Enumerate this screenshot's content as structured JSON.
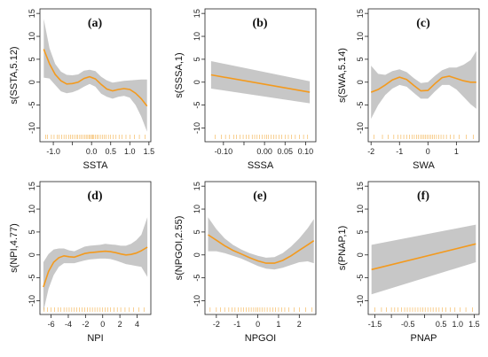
{
  "chart_data": [
    {
      "type": "line",
      "tag": "(a)",
      "xlabel": "SSTA",
      "ylabel": "s(SSTA,5.12)",
      "xlim": [
        -1.35,
        1.55
      ],
      "ylim": [
        -13,
        16
      ],
      "xticks": [
        -1.0,
        -0.5,
        0.0,
        0.5,
        1.0,
        1.5
      ],
      "xtick_labels": [
        "-1.0",
        "",
        "0.0",
        "0.5",
        "1.0",
        "1.5"
      ],
      "yticks": [
        -10,
        -5,
        0,
        5,
        10,
        15
      ],
      "x": [
        -1.25,
        -1.1,
        -0.95,
        -0.8,
        -0.65,
        -0.5,
        -0.35,
        -0.2,
        -0.05,
        0.1,
        0.25,
        0.4,
        0.55,
        0.7,
        0.85,
        1.0,
        1.15,
        1.3,
        1.45
      ],
      "y": [
        7.2,
        4.0,
        1.7,
        0.3,
        -0.4,
        -0.3,
        0.0,
        0.8,
        1.2,
        0.7,
        -0.5,
        -1.5,
        -1.9,
        -1.6,
        -1.4,
        -1.6,
        -2.4,
        -3.6,
        -5.2
      ],
      "lower": [
        1.0,
        0.8,
        -0.6,
        -2.0,
        -2.4,
        -2.2,
        -1.7,
        -1.0,
        -0.4,
        -1.0,
        -2.5,
        -3.2,
        -3.6,
        -3.2,
        -3.0,
        -3.4,
        -5.0,
        -7.5,
        -10.8
      ],
      "upper": [
        13.8,
        7.4,
        4.0,
        2.3,
        1.6,
        1.5,
        1.7,
        2.5,
        2.7,
        2.4,
        1.2,
        0.4,
        -0.1,
        0.1,
        0.3,
        0.4,
        0.5,
        0.6,
        0.6
      ],
      "rug": [
        -1.2,
        -1.15,
        -1.05,
        -0.98,
        -0.9,
        -0.85,
        -0.78,
        -0.72,
        -0.66,
        -0.6,
        -0.55,
        -0.5,
        -0.45,
        -0.4,
        -0.36,
        -0.31,
        -0.27,
        -0.22,
        -0.18,
        -0.14,
        -0.1,
        -0.06,
        -0.03,
        0.0,
        0.03,
        0.06,
        0.1,
        0.14,
        0.18,
        0.23,
        0.28,
        0.33,
        0.38,
        0.44,
        0.5,
        0.57,
        0.64,
        0.72,
        0.8,
        0.9,
        1.0,
        1.12,
        1.25,
        1.4
      ]
    },
    {
      "type": "line",
      "tag": "(b)",
      "xlabel": "SSSA",
      "ylabel": "s(SSSA,1)",
      "xlim": [
        -0.145,
        0.125
      ],
      "ylim": [
        -13,
        16
      ],
      "xticks": [
        -0.1,
        -0.05,
        0.0,
        0.05,
        0.1
      ],
      "xtick_labels": [
        "-0.10",
        "",
        "0.00",
        "0.05",
        "0.10"
      ],
      "yticks": [
        -10,
        -5,
        0,
        5,
        10,
        15
      ],
      "x": [
        -0.13,
        0.11
      ],
      "y": [
        1.6,
        -2.2
      ],
      "lower": [
        -1.4,
        -4.6
      ],
      "upper": [
        4.6,
        0.2
      ],
      "rug": [
        -0.12,
        -0.105,
        -0.095,
        -0.085,
        -0.075,
        -0.068,
        -0.06,
        -0.052,
        -0.045,
        -0.038,
        -0.03,
        -0.024,
        -0.018,
        -0.012,
        -0.006,
        0.0,
        0.005,
        0.01,
        0.016,
        0.022,
        0.028,
        0.035,
        0.042,
        0.05,
        0.058,
        0.066,
        0.075,
        0.085,
        0.095,
        0.105
      ]
    },
    {
      "type": "line",
      "tag": "(c)",
      "xlabel": "SWA",
      "ylabel": "s(SWA,5.14)",
      "xlim": [
        -2.1,
        1.8
      ],
      "ylim": [
        -13,
        16
      ],
      "xticks": [
        -2,
        -1,
        0,
        1
      ],
      "xtick_labels": [
        "-2",
        "-1",
        "0",
        "1"
      ],
      "yticks": [
        -10,
        -5,
        0,
        5,
        10,
        15
      ],
      "x": [
        -2.0,
        -1.75,
        -1.5,
        -1.25,
        -1.0,
        -0.75,
        -0.5,
        -0.25,
        0.0,
        0.25,
        0.5,
        0.75,
        1.0,
        1.25,
        1.5,
        1.7
      ],
      "y": [
        -2.2,
        -1.6,
        -0.6,
        0.5,
        1.1,
        0.6,
        -0.7,
        -1.9,
        -1.8,
        -0.3,
        1.0,
        1.3,
        0.8,
        0.3,
        0.0,
        0.0
      ],
      "lower": [
        -8.0,
        -5.0,
        -2.8,
        -1.4,
        -0.6,
        -1.0,
        -2.3,
        -3.6,
        -3.6,
        -2.0,
        -0.6,
        -0.6,
        -1.6,
        -3.2,
        -4.8,
        -5.8
      ],
      "upper": [
        3.6,
        1.8,
        1.6,
        2.4,
        2.8,
        2.2,
        0.9,
        -0.2,
        0.0,
        1.4,
        2.6,
        3.2,
        3.2,
        3.8,
        4.8,
        6.8
      ],
      "rug": [
        -1.9,
        -1.6,
        -1.4,
        -1.2,
        -1.05,
        -0.95,
        -0.85,
        -0.75,
        -0.65,
        -0.55,
        -0.48,
        -0.4,
        -0.33,
        -0.26,
        -0.2,
        -0.14,
        -0.08,
        -0.02,
        0.04,
        0.1,
        0.16,
        0.22,
        0.3,
        0.38,
        0.46,
        0.55,
        0.65,
        0.78,
        0.92,
        1.1,
        1.35,
        1.6
      ]
    },
    {
      "type": "line",
      "tag": "(d)",
      "xlabel": "NPI",
      "ylabel": "s(NPI,4.77)",
      "xlim": [
        -7.3,
        5.6
      ],
      "ylim": [
        -13,
        16
      ],
      "xticks": [
        -6,
        -4,
        -2,
        0,
        2,
        4
      ],
      "xtick_labels": [
        "-6",
        "-4",
        "-2",
        "0",
        "2",
        "4"
      ],
      "yticks": [
        -10,
        -5,
        0,
        5,
        10,
        15
      ],
      "x": [
        -6.9,
        -6.3,
        -5.7,
        -5.1,
        -4.5,
        -3.9,
        -3.3,
        -2.7,
        -2.1,
        -1.5,
        -0.9,
        -0.3,
        0.3,
        0.9,
        1.5,
        2.1,
        2.7,
        3.3,
        3.9,
        4.5,
        5.2
      ],
      "y": [
        -7.0,
        -3.6,
        -1.6,
        -0.6,
        -0.2,
        -0.4,
        -0.5,
        -0.1,
        0.3,
        0.5,
        0.6,
        0.7,
        0.8,
        0.7,
        0.5,
        0.2,
        0.0,
        0.1,
        0.4,
        0.9,
        1.7
      ],
      "lower": [
        -12.4,
        -7.4,
        -4.4,
        -2.6,
        -1.8,
        -1.8,
        -1.8,
        -1.5,
        -1.2,
        -1.0,
        -0.9,
        -0.8,
        -0.8,
        -0.9,
        -1.2,
        -1.6,
        -2.0,
        -2.2,
        -2.4,
        -2.6,
        -4.8
      ],
      "upper": [
        -1.6,
        0.2,
        1.2,
        1.4,
        1.4,
        1.0,
        0.8,
        1.3,
        1.8,
        2.0,
        2.1,
        2.2,
        2.4,
        2.3,
        2.2,
        2.0,
        2.0,
        2.4,
        3.2,
        4.4,
        8.2
      ],
      "rug": [
        -6.8,
        -6.4,
        -6.0,
        -5.6,
        -5.2,
        -4.9,
        -4.5,
        -4.2,
        -3.9,
        -3.6,
        -3.3,
        -3.0,
        -2.7,
        -2.4,
        -2.1,
        -1.8,
        -1.5,
        -1.2,
        -0.9,
        -0.6,
        -0.3,
        0.0,
        0.3,
        0.6,
        0.9,
        1.3,
        1.7,
        2.1,
        2.6,
        3.1,
        3.6,
        4.2,
        4.8
      ]
    },
    {
      "type": "line",
      "tag": "(e)",
      "xlabel": "NPGOI",
      "ylabel": "s(NPGOI,2.55)",
      "xlim": [
        -2.55,
        2.8
      ],
      "ylim": [
        -13,
        16
      ],
      "xticks": [
        -2,
        -1,
        0,
        1,
        2
      ],
      "xtick_labels": [
        "-2",
        "-1",
        "0",
        "1",
        "2"
      ],
      "yticks": [
        -10,
        -5,
        0,
        5,
        10,
        15
      ],
      "x": [
        -2.4,
        -2.0,
        -1.6,
        -1.2,
        -0.8,
        -0.4,
        0.0,
        0.4,
        0.8,
        1.2,
        1.6,
        2.0,
        2.4,
        2.7
      ],
      "y": [
        4.4,
        3.2,
        2.0,
        1.0,
        0.2,
        -0.6,
        -1.3,
        -1.8,
        -1.8,
        -1.2,
        -0.2,
        1.0,
        2.2,
        3.1
      ],
      "lower": [
        0.8,
        0.8,
        0.4,
        -0.2,
        -0.8,
        -1.6,
        -2.4,
        -3.0,
        -3.2,
        -2.8,
        -2.2,
        -1.6,
        -1.4,
        -1.8
      ],
      "upper": [
        8.2,
        5.6,
        3.6,
        2.2,
        1.2,
        0.4,
        -0.2,
        -0.6,
        -0.5,
        0.4,
        1.8,
        3.6,
        5.8,
        7.8
      ],
      "rug": [
        -2.3,
        -2.0,
        -1.8,
        -1.6,
        -1.4,
        -1.25,
        -1.1,
        -0.95,
        -0.8,
        -0.68,
        -0.56,
        -0.44,
        -0.32,
        -0.2,
        -0.1,
        0.0,
        0.1,
        0.2,
        0.32,
        0.45,
        0.58,
        0.72,
        0.86,
        1.0,
        1.15,
        1.3,
        1.5,
        1.75,
        2.0,
        2.3,
        2.6
      ]
    },
    {
      "type": "line",
      "tag": "(f)",
      "xlabel": "PNAP",
      "ylabel": "s(PNAP,1)",
      "xlim": [
        -1.7,
        1.65
      ],
      "ylim": [
        -13,
        16
      ],
      "xticks": [
        -1.5,
        -1.0,
        -0.5,
        0.0,
        0.5,
        1.0,
        1.5
      ],
      "xtick_labels": [
        "-1.5",
        "",
        "-0.5",
        "",
        "0.5",
        "1.0",
        "1.5"
      ],
      "yticks": [
        -10,
        -5,
        0,
        5,
        10,
        15
      ],
      "x": [
        -1.6,
        1.55
      ],
      "y": [
        -3.2,
        2.4
      ],
      "lower": [
        -8.6,
        -1.6
      ],
      "upper": [
        2.2,
        6.6
      ],
      "rug": [
        -1.5,
        -1.3,
        -1.15,
        -1.0,
        -0.9,
        -0.8,
        -0.7,
        -0.6,
        -0.52,
        -0.44,
        -0.36,
        -0.28,
        -0.2,
        -0.12,
        -0.05,
        0.02,
        0.1,
        0.18,
        0.26,
        0.35,
        0.44,
        0.54,
        0.65,
        0.78,
        0.92,
        1.08,
        1.25,
        1.45
      ]
    }
  ]
}
